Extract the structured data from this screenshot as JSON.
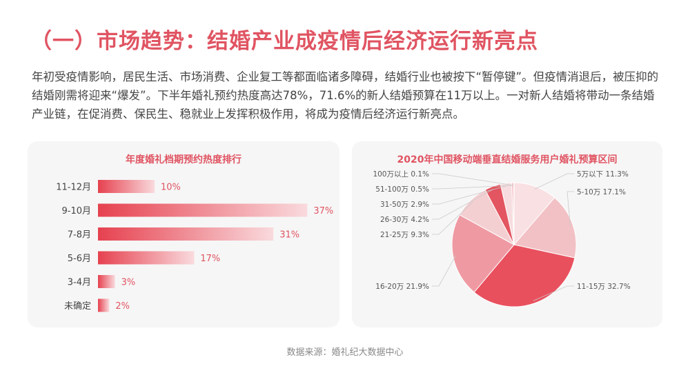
{
  "heading": "（一）市场趋势：结婚产业成疫情后经济运行新亮点",
  "intro": "年初受疫情影响，居民生活、市场消费、企业复工等都面临诸多障碍，结婚行业也被按下“暂停键”。但疫情消退后，被压抑的结婚刚需将迎来“爆发”。下半年婚礼预约热度高达78%，71.6%的新人结婚预算在11万以上。一对新人结婚将带动一条结婚产业链，在促消费、保民生、稳就业上发挥积极作用，将成为疫情后经济运行新亮点。",
  "source": "数据来源：婚礼纪大数据中心",
  "accent_color": "#e05462",
  "chart_data": [
    {
      "type": "bar",
      "orientation": "horizontal",
      "title": "年度婚礼档期预约热度排行",
      "categories": [
        "11-12月",
        "9-10月",
        "7-8月",
        "5-6月",
        "3-4月",
        "未确定"
      ],
      "values": [
        10,
        37,
        31,
        17,
        3,
        2
      ],
      "value_labels": [
        "10%",
        "37%",
        "31%",
        "17%",
        "3%",
        "2%"
      ],
      "unit": "%"
    },
    {
      "type": "pie",
      "title": "2020年中国移动端垂直结婚服务用户婚礼预算区间",
      "categories": [
        "5万以下",
        "5-10万",
        "11-15万",
        "16-20万",
        "21-25万",
        "26-30万",
        "31-50万",
        "51-100万",
        "100万以上"
      ],
      "values": [
        11.3,
        17.1,
        32.7,
        21.9,
        9.3,
        4.2,
        2.9,
        0.5,
        0.1
      ],
      "value_labels": [
        "11.3%",
        "17.1%",
        "32.7%",
        "21.9%",
        "9.3%",
        "4.2%",
        "2.9%",
        "0.5%",
        "0.1%"
      ],
      "colors": [
        "#f9e0e2",
        "#f2c1c5",
        "#e9505e",
        "#ef9aa3",
        "#f4cfd2",
        "#e35560",
        "#f7dde0",
        "#f4bcc2",
        "#fbe9ea"
      ]
    }
  ]
}
